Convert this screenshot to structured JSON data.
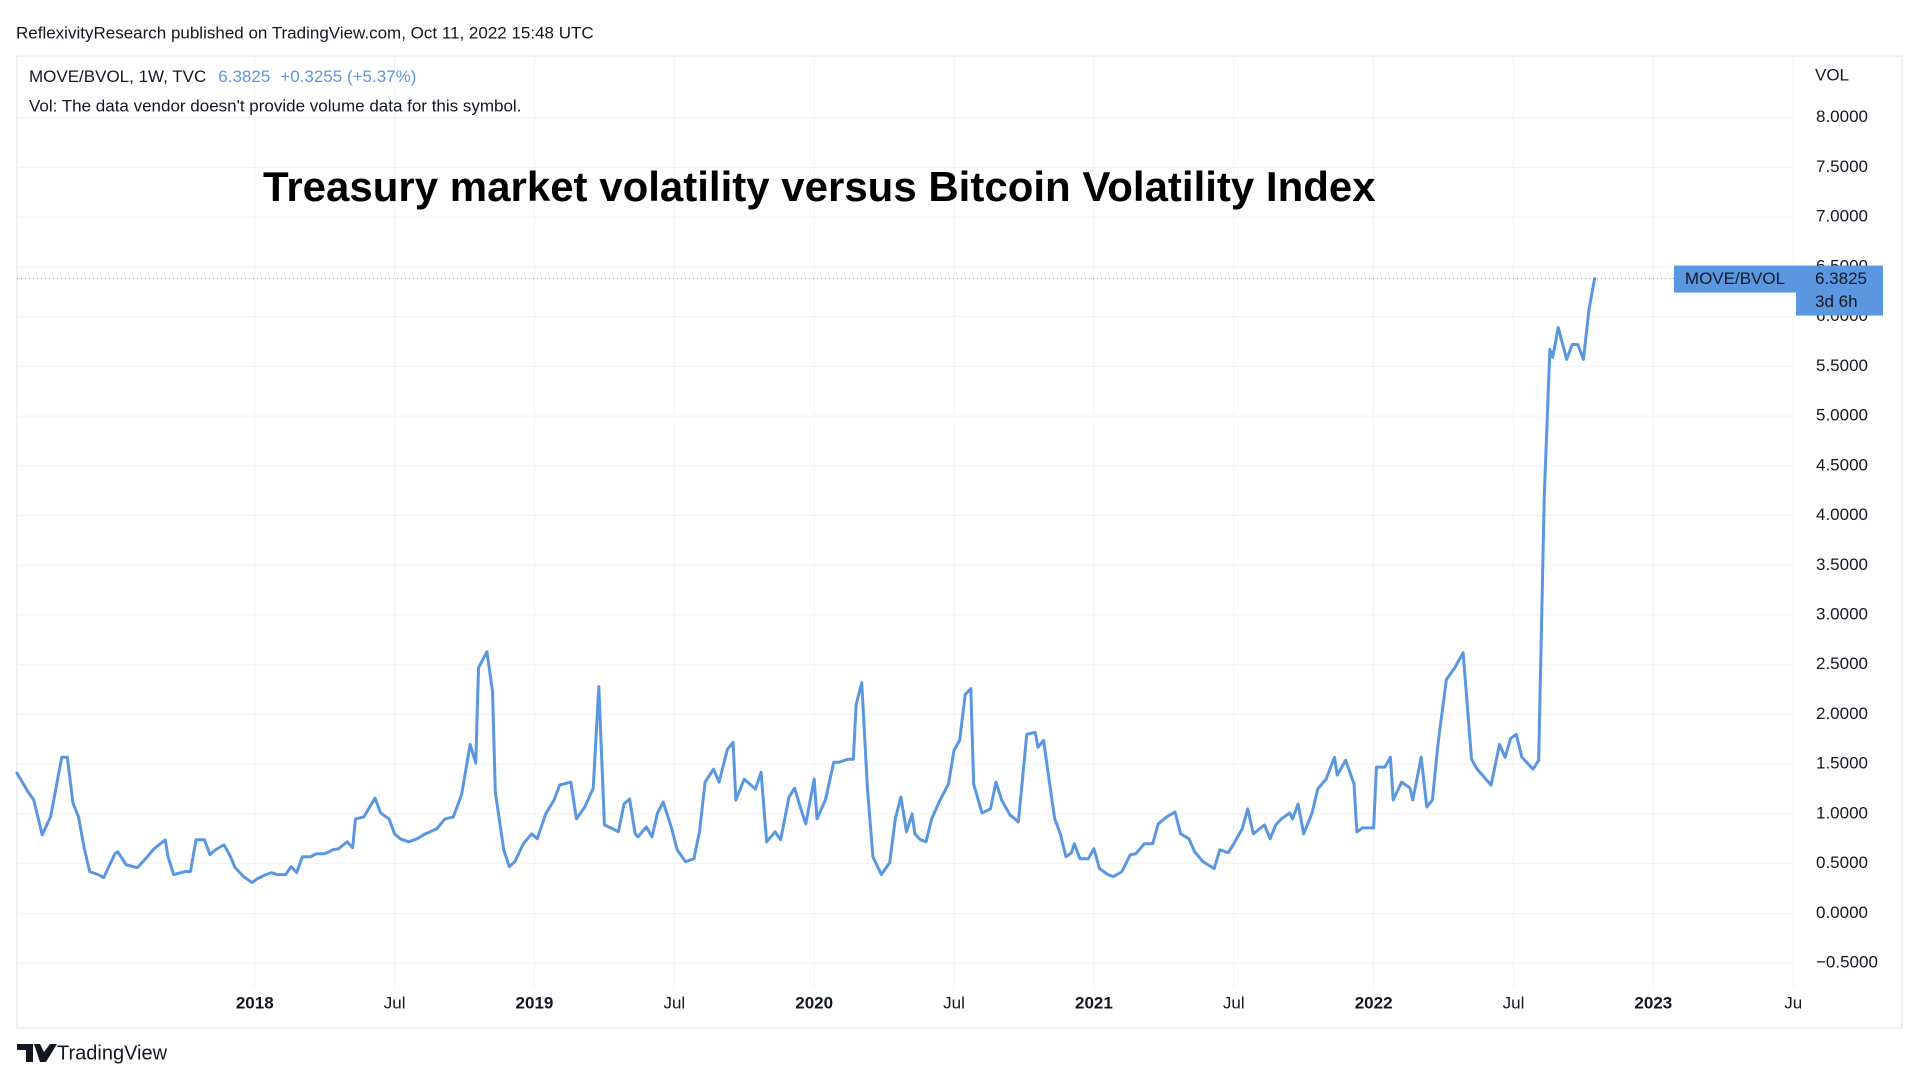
{
  "chart_data": {
    "type": "line",
    "published": "ReflexivityResearch published on TradingView.com, Oct 11, 2022 15:48 UTC",
    "symbol": "MOVE/BVOL, 1W, TVC",
    "change": "+0.3255 (+5.37%)",
    "volume_note": "Vol: The data vendor doesn't provide volume data for this symbol.",
    "title": "Treasury market volatility versus Bitcoin Volatility Index",
    "y_axis_label": "VOL",
    "countdown": "3d 6h",
    "brand": "TradingView",
    "grid": true,
    "xlim": [
      2017.15,
      2023.51
    ],
    "ylim": [
      -0.75,
      8.62
    ],
    "xticks": [
      2018,
      {
        "value": 2018.5,
        "label": "Jul"
      },
      2019,
      {
        "value": 2019.5,
        "label": "Jul"
      },
      2020,
      {
        "value": 2020.5,
        "label": "Jul"
      },
      2021,
      {
        "value": 2021.5,
        "label": "Jul"
      },
      2022,
      {
        "value": 2022.5,
        "label": "Jul"
      },
      2023,
      {
        "value": 2023.5,
        "label": "Ju"
      }
    ],
    "yticks": [
      {
        "value": -0.5,
        "label": "−0.5000"
      },
      {
        "value": 0,
        "label": "0.0000"
      },
      {
        "value": 0.5,
        "label": "0.5000"
      },
      {
        "value": 1,
        "label": "1.0000"
      },
      {
        "value": 1.5,
        "label": "1.5000"
      },
      {
        "value": 2,
        "label": "2.0000"
      },
      {
        "value": 2.5,
        "label": "2.5000"
      },
      {
        "value": 3,
        "label": "3.0000"
      },
      {
        "value": 3.5,
        "label": "3.5000"
      },
      {
        "value": 4,
        "label": "4.0000"
      },
      {
        "value": 4.5,
        "label": "4.5000"
      },
      {
        "value": 5,
        "label": "5.0000"
      },
      {
        "value": 5.5,
        "label": "5.5000"
      },
      {
        "value": 6,
        "label": "6.0000"
      },
      {
        "value": 6.5,
        "label": "6.5000"
      },
      {
        "value": 7,
        "label": "7.0000"
      },
      {
        "value": 7.5,
        "label": "7.5000"
      },
      {
        "value": 8,
        "label": "8.0000"
      }
    ],
    "x": [
      2017.15,
      2017.19,
      2017.21,
      2017.24,
      2017.27,
      2017.31,
      2017.33,
      2017.35,
      2017.37,
      2017.39,
      2017.41,
      2017.44,
      2017.46,
      2017.5,
      2017.51,
      2017.54,
      2017.58,
      2017.61,
      2017.64,
      2017.68,
      2017.69,
      2017.71,
      2017.75,
      2017.77,
      2017.79,
      2017.82,
      2017.84,
      2017.86,
      2017.89,
      2017.91,
      2017.93,
      2017.96,
      2017.99,
      2018.01,
      2018.04,
      2018.06,
      2018.08,
      2018.11,
      2018.13,
      2018.15,
      2018.17,
      2018.2,
      2018.22,
      2018.25,
      2018.28,
      2018.3,
      2018.33,
      2018.35,
      2018.36,
      2018.39,
      2018.43,
      2018.45,
      2018.48,
      2018.5,
      2018.52,
      2018.55,
      2018.58,
      2018.61,
      2018.65,
      2018.68,
      2018.71,
      2018.74,
      2018.77,
      2018.79,
      2018.8,
      2018.83,
      2018.85,
      2018.86,
      2018.89,
      2018.91,
      2018.93,
      2018.96,
      2018.99,
      2019.01,
      2019.04,
      2019.07,
      2019.09,
      2019.13,
      2019.15,
      2019.18,
      2019.21,
      2019.23,
      2019.25,
      2019.28,
      2019.3,
      2019.32,
      2019.34,
      2019.36,
      2019.37,
      2019.4,
      2019.42,
      2019.44,
      2019.46,
      2019.49,
      2019.51,
      2019.54,
      2019.57,
      2019.59,
      2019.61,
      2019.64,
      2019.66,
      2019.69,
      2019.71,
      2019.72,
      2019.75,
      2019.79,
      2019.81,
      2019.83,
      2019.86,
      2019.88,
      2019.91,
      2019.93,
      2019.95,
      2019.97,
      2020.0,
      2020.01,
      2020.04,
      2020.07,
      2020.09,
      2020.12,
      2020.14,
      2020.15,
      2020.17,
      2020.19,
      2020.21,
      2020.24,
      2020.27,
      2020.29,
      2020.31,
      2020.33,
      2020.35,
      2020.36,
      2020.38,
      2020.4,
      2020.42,
      2020.45,
      2020.48,
      2020.5,
      2020.52,
      2020.54,
      2020.56,
      2020.57,
      2020.6,
      2020.63,
      2020.65,
      2020.67,
      2020.7,
      2020.73,
      2020.76,
      2020.79,
      2020.8,
      2020.82,
      2020.85,
      2020.86,
      2020.88,
      2020.9,
      2020.92,
      2020.93,
      2020.95,
      2020.98,
      2021.0,
      2021.02,
      2021.05,
      2021.07,
      2021.1,
      2021.13,
      2021.15,
      2021.18,
      2021.21,
      2021.23,
      2021.26,
      2021.29,
      2021.31,
      2021.34,
      2021.36,
      2021.39,
      2021.43,
      2021.45,
      2021.48,
      2021.5,
      2021.53,
      2021.55,
      2021.57,
      2021.61,
      2021.63,
      2021.65,
      2021.67,
      2021.7,
      2021.71,
      2021.73,
      2021.75,
      2021.78,
      2021.8,
      2021.83,
      2021.86,
      2021.87,
      2021.9,
      2021.93,
      2021.94,
      2021.96,
      2022.0,
      2022.01,
      2022.04,
      2022.06,
      2022.07,
      2022.1,
      2022.13,
      2022.14,
      2022.17,
      2022.19,
      2022.21,
      2022.23,
      2022.26,
      2022.29,
      2022.32,
      2022.35,
      2022.37,
      2022.42,
      2022.45,
      2022.47,
      2022.49,
      2022.51,
      2022.53,
      2022.57,
      2022.59,
      2022.61,
      2022.63,
      2022.64,
      2022.66,
      2022.69,
      2022.71,
      2022.73,
      2022.75,
      2022.77,
      2022.79
    ],
    "series": [
      {
        "name": "MOVE/BVOL",
        "color": "#5b97e0",
        "values": [
          1.41,
          1.22,
          1.14,
          0.79,
          0.97,
          1.57,
          1.57,
          1.11,
          0.97,
          0.66,
          0.42,
          0.39,
          0.36,
          0.6,
          0.62,
          0.49,
          0.46,
          0.55,
          0.65,
          0.74,
          0.57,
          0.39,
          0.42,
          0.42,
          0.74,
          0.74,
          0.59,
          0.64,
          0.69,
          0.59,
          0.46,
          0.37,
          0.31,
          0.35,
          0.39,
          0.41,
          0.39,
          0.39,
          0.47,
          0.41,
          0.57,
          0.57,
          0.6,
          0.6,
          0.64,
          0.65,
          0.72,
          0.66,
          0.95,
          0.97,
          1.16,
          1.01,
          0.95,
          0.8,
          0.75,
          0.72,
          0.75,
          0.8,
          0.85,
          0.95,
          0.97,
          1.2,
          1.7,
          1.51,
          2.47,
          2.63,
          2.23,
          1.22,
          0.64,
          0.47,
          0.52,
          0.7,
          0.8,
          0.75,
          1.0,
          1.14,
          1.29,
          1.32,
          0.95,
          1.07,
          1.26,
          2.28,
          0.89,
          0.85,
          0.82,
          1.1,
          1.15,
          0.8,
          0.77,
          0.87,
          0.77,
          1.01,
          1.12,
          0.86,
          0.64,
          0.52,
          0.55,
          0.82,
          1.32,
          1.45,
          1.32,
          1.65,
          1.72,
          1.14,
          1.35,
          1.25,
          1.42,
          0.72,
          0.82,
          0.74,
          1.17,
          1.26,
          1.07,
          0.9,
          1.35,
          0.95,
          1.14,
          1.52,
          1.52,
          1.55,
          1.55,
          2.1,
          2.32,
          1.27,
          0.57,
          0.39,
          0.51,
          0.95,
          1.17,
          0.82,
          1.0,
          0.8,
          0.74,
          0.72,
          0.95,
          1.14,
          1.3,
          1.64,
          1.74,
          2.2,
          2.26,
          1.3,
          1.01,
          1.05,
          1.32,
          1.14,
          0.99,
          0.92,
          1.8,
          1.82,
          1.67,
          1.74,
          1.14,
          0.95,
          0.8,
          0.57,
          0.61,
          0.7,
          0.55,
          0.55,
          0.65,
          0.45,
          0.39,
          0.37,
          0.42,
          0.59,
          0.6,
          0.7,
          0.7,
          0.9,
          0.97,
          1.02,
          0.8,
          0.75,
          0.62,
          0.52,
          0.45,
          0.64,
          0.61,
          0.7,
          0.85,
          1.05,
          0.8,
          0.89,
          0.75,
          0.89,
          0.95,
          1.01,
          0.95,
          1.1,
          0.8,
          1.01,
          1.25,
          1.35,
          1.57,
          1.39,
          1.54,
          1.3,
          0.82,
          0.86,
          0.86,
          1.47,
          1.47,
          1.57,
          1.14,
          1.32,
          1.26,
          1.14,
          1.57,
          1.07,
          1.14,
          1.7,
          2.35,
          2.47,
          2.62,
          1.55,
          1.45,
          1.29,
          1.7,
          1.57,
          1.76,
          1.8,
          1.57,
          1.45,
          1.54,
          4.19,
          5.67,
          5.59,
          5.89,
          5.57,
          5.72,
          5.72,
          5.57,
          6.07,
          6.3825
        ]
      }
    ]
  }
}
